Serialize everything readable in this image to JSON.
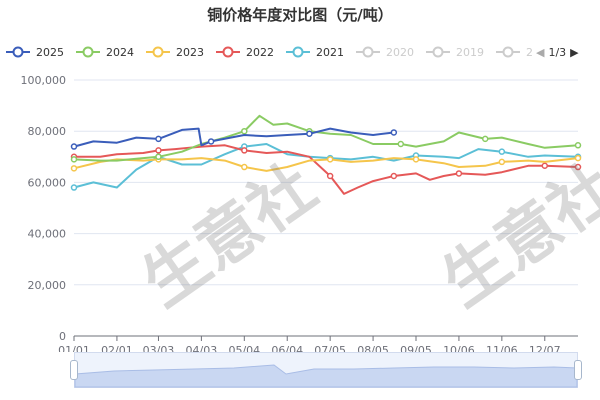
{
  "chart_data": {
    "type": "line",
    "title": "铜价格年度对比图（元/吨）",
    "x_ticks": [
      "01/01",
      "02/01",
      "03/03",
      "04/03",
      "05/04",
      "06/04",
      "07/05",
      "08/05",
      "09/05",
      "10/06",
      "11/06",
      "12/07"
    ],
    "y_ticks": [
      "0",
      "20,000",
      "40,000",
      "60,000",
      "80,000",
      "100,000"
    ],
    "ylim": [
      0,
      100000
    ],
    "grid": true,
    "legend_position": "top",
    "legend_page": "1/3",
    "series": [
      {
        "name": "2025",
        "color": "#3a5dba",
        "active": true,
        "x": [
          "01/01",
          "01/15",
          "02/01",
          "02/15",
          "03/03",
          "03/20",
          "04/01",
          "04/03",
          "04/10",
          "05/04",
          "05/20",
          "06/04",
          "06/20",
          "07/05",
          "07/20",
          "08/05",
          "08/20"
        ],
        "values": [
          74000,
          76000,
          75500,
          77500,
          77000,
          80500,
          81000,
          74500,
          76000,
          78500,
          78000,
          78500,
          79000,
          81000,
          79500,
          78500,
          79500
        ]
      },
      {
        "name": "2024",
        "color": "#8acb63",
        "active": true,
        "x": [
          "01/01",
          "01/20",
          "02/01",
          "02/20",
          "03/03",
          "03/20",
          "04/03",
          "04/20",
          "05/04",
          "05/15",
          "05/25",
          "06/04",
          "06/20",
          "07/05",
          "07/20",
          "08/05",
          "08/25",
          "09/05",
          "09/25",
          "10/06",
          "10/25",
          "11/06",
          "11/25",
          "12/07",
          "12/31"
        ],
        "values": [
          69000,
          68500,
          68500,
          69500,
          70000,
          72000,
          75000,
          77500,
          80000,
          86000,
          82500,
          83000,
          80000,
          79000,
          78500,
          75000,
          75000,
          74000,
          76000,
          79500,
          77000,
          77500,
          75000,
          73500,
          74500
        ]
      },
      {
        "name": "2023",
        "color": "#f5c54b",
        "active": true,
        "x": [
          "01/01",
          "01/20",
          "02/01",
          "02/20",
          "03/03",
          "03/20",
          "04/03",
          "04/20",
          "05/04",
          "05/20",
          "06/04",
          "06/20",
          "07/05",
          "07/20",
          "08/05",
          "08/20",
          "09/05",
          "09/25",
          "10/06",
          "10/25",
          "11/06",
          "11/25",
          "12/07",
          "12/31"
        ],
        "values": [
          65500,
          68000,
          69000,
          68500,
          69000,
          69000,
          69500,
          68500,
          66000,
          64500,
          66000,
          68500,
          69000,
          68000,
          68500,
          69500,
          69000,
          67500,
          66000,
          66500,
          68000,
          68500,
          68000,
          69500
        ]
      },
      {
        "name": "2022",
        "color": "#e55858",
        "active": true,
        "x": [
          "01/01",
          "01/20",
          "02/01",
          "02/20",
          "03/03",
          "03/15",
          "04/03",
          "04/20",
          "05/04",
          "05/20",
          "06/04",
          "06/20",
          "07/05",
          "07/15",
          "07/25",
          "08/05",
          "08/20",
          "09/05",
          "09/15",
          "09/25",
          "10/06",
          "10/25",
          "11/06",
          "11/25",
          "12/07",
          "12/31"
        ],
        "values": [
          70000,
          70000,
          71000,
          71500,
          72500,
          73000,
          74000,
          74500,
          72500,
          71500,
          72000,
          70000,
          62500,
          55500,
          58000,
          60500,
          62500,
          63500,
          61000,
          62500,
          63500,
          63000,
          64000,
          66500,
          66500,
          66000
        ]
      },
      {
        "name": "2021",
        "color": "#5bbfd6",
        "active": true,
        "x": [
          "01/01",
          "01/15",
          "02/01",
          "02/15",
          "03/03",
          "03/20",
          "04/03",
          "04/20",
          "05/04",
          "05/20",
          "06/04",
          "06/20",
          "07/05",
          "07/20",
          "08/05",
          "08/20",
          "09/05",
          "09/25",
          "10/06",
          "10/20",
          "11/06",
          "11/25",
          "12/07",
          "12/31"
        ],
        "values": [
          58000,
          60000,
          58000,
          65000,
          70000,
          67000,
          67000,
          71000,
          74000,
          75000,
          71000,
          70000,
          69500,
          69000,
          70000,
          68500,
          70500,
          70000,
          69500,
          73000,
          72000,
          70000,
          70500,
          70000
        ]
      },
      {
        "name": "2020",
        "color": "#cccccc",
        "active": false,
        "x": [],
        "values": []
      },
      {
        "name": "2019",
        "color": "#cccccc",
        "active": false,
        "x": [],
        "values": []
      },
      {
        "name": "2",
        "color": "#cccccc",
        "active": false,
        "x": [],
        "values": []
      }
    ]
  },
  "watermarks": [
    "生意社",
    "生意社"
  ]
}
